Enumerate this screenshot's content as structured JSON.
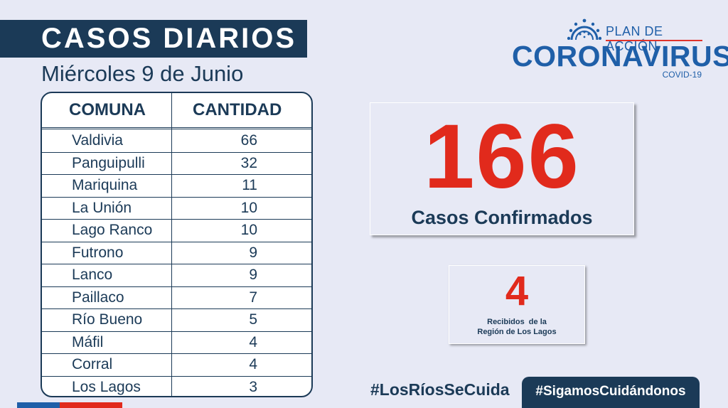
{
  "header": {
    "title": "CASOS DIARIOS",
    "date": "Miércoles 9 de Junio"
  },
  "table": {
    "col_comuna": "COMUNA",
    "col_cantidad": "CANTIDAD",
    "rows": [
      {
        "comuna": "Valdivia",
        "cantidad": "66"
      },
      {
        "comuna": "Panguipulli",
        "cantidad": "32"
      },
      {
        "comuna": "Mariquina",
        "cantidad": "11"
      },
      {
        "comuna": "La Unión",
        "cantidad": "10"
      },
      {
        "comuna": "Lago Ranco",
        "cantidad": "10"
      },
      {
        "comuna": "Futrono",
        "cantidad": "9"
      },
      {
        "comuna": "Lanco",
        "cantidad": "9"
      },
      {
        "comuna": "Paillaco",
        "cantidad": "7"
      },
      {
        "comuna": "Río Bueno",
        "cantidad": "5"
      },
      {
        "comuna": "Máfil",
        "cantidad": "4"
      },
      {
        "comuna": "Corral",
        "cantidad": "4"
      },
      {
        "comuna": "Los Lagos",
        "cantidad": "3"
      }
    ]
  },
  "logo": {
    "plan": "PLAN DE ACCIÓN",
    "main": "CORONAVIRUS",
    "sub": "COVID-19",
    "icon": "coronavirus-icon"
  },
  "summary": {
    "confirmed_number": "166",
    "confirmed_label": "Casos Confirmados",
    "received_number": "4",
    "received_label_line1": "Recibidos  de la",
    "received_label_line2": "Región de Los Lagos"
  },
  "footer": {
    "hashtag1": "#LosRíosSeCuida",
    "hashtag2": "#SigamosCuidándonos"
  },
  "colors": {
    "navy": "#1b3a57",
    "blue": "#1f5fa8",
    "red": "#e12a1c",
    "background": "#e7e9f5"
  }
}
